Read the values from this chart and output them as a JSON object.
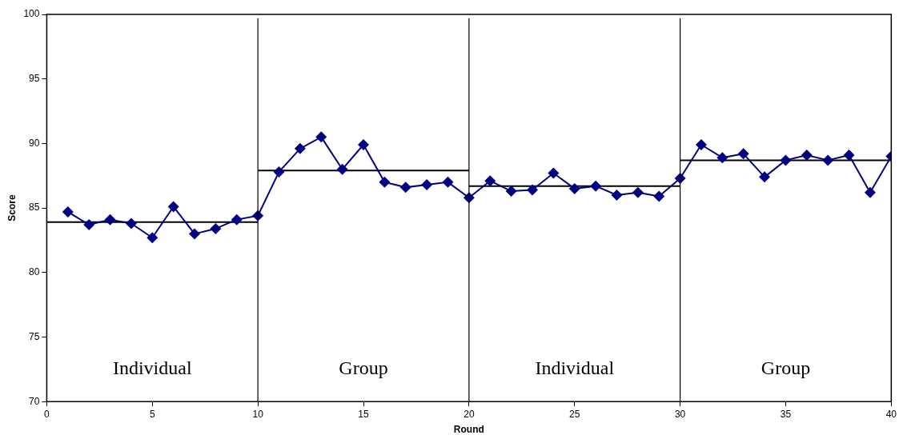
{
  "chart_data": {
    "type": "line",
    "xlabel": "Round",
    "ylabel": "Score",
    "xlim": [
      0,
      40
    ],
    "xticks": [
      0,
      5,
      10,
      15,
      20,
      25,
      30,
      35,
      40
    ],
    "ylim": [
      70,
      100
    ],
    "yticks": [
      70,
      75,
      80,
      85,
      90,
      95,
      100
    ],
    "grid": false,
    "legend": false,
    "marker": "diamond",
    "line_style": "solid",
    "series": [
      {
        "color": "#000080",
        "x": [
          1,
          2,
          3,
          4,
          5,
          6,
          7,
          8,
          9,
          10,
          11,
          12,
          13,
          14,
          15,
          16,
          17,
          18,
          19,
          20,
          21,
          22,
          23,
          24,
          25,
          26,
          27,
          28,
          29,
          30,
          31,
          32,
          33,
          34,
          35,
          36,
          37,
          38,
          39,
          40
        ],
        "values": [
          84.7,
          83.7,
          84.1,
          83.8,
          82.7,
          85.1,
          83.0,
          83.4,
          84.1,
          84.4,
          87.8,
          89.6,
          90.5,
          88.0,
          89.9,
          87.0,
          86.6,
          86.8,
          87.0,
          85.8,
          87.1,
          86.3,
          86.4,
          87.7,
          86.5,
          86.7,
          86.0,
          86.2,
          85.9,
          87.3,
          89.9,
          88.9,
          89.2,
          87.4,
          88.7,
          89.1,
          88.7,
          89.1,
          86.2,
          89.0
        ]
      },
      {
        "type": "line",
        "marker": "none",
        "color": "#000000",
        "x": [
          0,
          10
        ],
        "values": [
          83.9,
          83.9
        ]
      },
      {
        "type": "line",
        "marker": "none",
        "color": "#000000",
        "x": [
          10,
          20
        ],
        "values": [
          87.9,
          87.9
        ]
      },
      {
        "type": "line",
        "marker": "none",
        "color": "#000000",
        "x": [
          20,
          30
        ],
        "values": [
          86.7,
          86.7
        ]
      },
      {
        "type": "line",
        "marker": "none",
        "color": "#000000",
        "x": [
          30,
          40
        ],
        "values": [
          88.7,
          88.7
        ]
      }
    ],
    "ref_lines": [
      {
        "axis": "x",
        "value": 10,
        "color": "#000000"
      },
      {
        "axis": "x",
        "value": 20,
        "color": "#000000"
      },
      {
        "axis": "x",
        "value": 30,
        "color": "#000000"
      }
    ],
    "annotations": [
      "Individual",
      "Group",
      "Individual",
      "Group"
    ]
  }
}
